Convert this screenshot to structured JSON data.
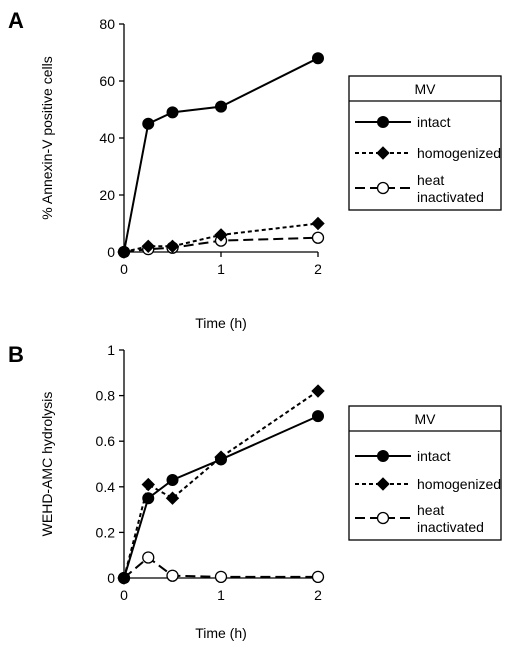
{
  "chart_data": [
    {
      "type": "line",
      "panel": "A",
      "title": "",
      "xlabel": "Time (h)",
      "ylabel": "% Annexin-V positive cells",
      "xlim": [
        0,
        2
      ],
      "ylim": [
        0,
        80
      ],
      "xticks": [
        0,
        1,
        2
      ],
      "yticks": [
        0,
        20,
        40,
        60,
        80
      ],
      "grid": false,
      "legend": {
        "title": "MV",
        "placement": "right"
      },
      "series": [
        {
          "name": "intact",
          "marker": "filled-circle",
          "line": "solid",
          "x": [
            0,
            0.25,
            0.5,
            1,
            2
          ],
          "y": [
            0,
            45,
            49,
            51,
            68
          ]
        },
        {
          "name": "homogenized",
          "marker": "filled-diamond",
          "line": "dotted",
          "x": [
            0,
            0.25,
            0.5,
            1,
            2
          ],
          "y": [
            0,
            2,
            2,
            6,
            10
          ]
        },
        {
          "name": "heat inactivated",
          "name_lines": [
            "heat",
            "inactivated"
          ],
          "marker": "open-circle",
          "line": "dashed",
          "x": [
            0,
            0.25,
            0.5,
            1,
            2
          ],
          "y": [
            0,
            1,
            1.5,
            4,
            5
          ]
        }
      ]
    },
    {
      "type": "line",
      "panel": "B",
      "title": "",
      "xlabel": "Time (h)",
      "ylabel": "WEHD-AMC hydrolysis",
      "xlim": [
        0,
        2
      ],
      "ylim": [
        0,
        1
      ],
      "xticks": [
        0,
        1,
        2
      ],
      "yticks": [
        0,
        0.2,
        0.4,
        0.6,
        0.8,
        1
      ],
      "grid": false,
      "legend": {
        "title": "MV",
        "placement": "right"
      },
      "series": [
        {
          "name": "intact",
          "marker": "filled-circle",
          "line": "solid",
          "x": [
            0,
            0.25,
            0.5,
            1,
            2
          ],
          "y": [
            0,
            0.35,
            0.43,
            0.52,
            0.71
          ]
        },
        {
          "name": "homogenized",
          "marker": "filled-diamond",
          "line": "dotted",
          "x": [
            0,
            0.25,
            0.5,
            1,
            2
          ],
          "y": [
            0,
            0.41,
            0.35,
            0.53,
            0.82
          ]
        },
        {
          "name": "heat inactivated",
          "name_lines": [
            "heat",
            "inactivated"
          ],
          "marker": "open-circle",
          "line": "dashed",
          "x": [
            0,
            0.25,
            0.5,
            1,
            2
          ],
          "y": [
            0,
            0.09,
            0.01,
            0.005,
            0.005
          ]
        }
      ]
    }
  ]
}
